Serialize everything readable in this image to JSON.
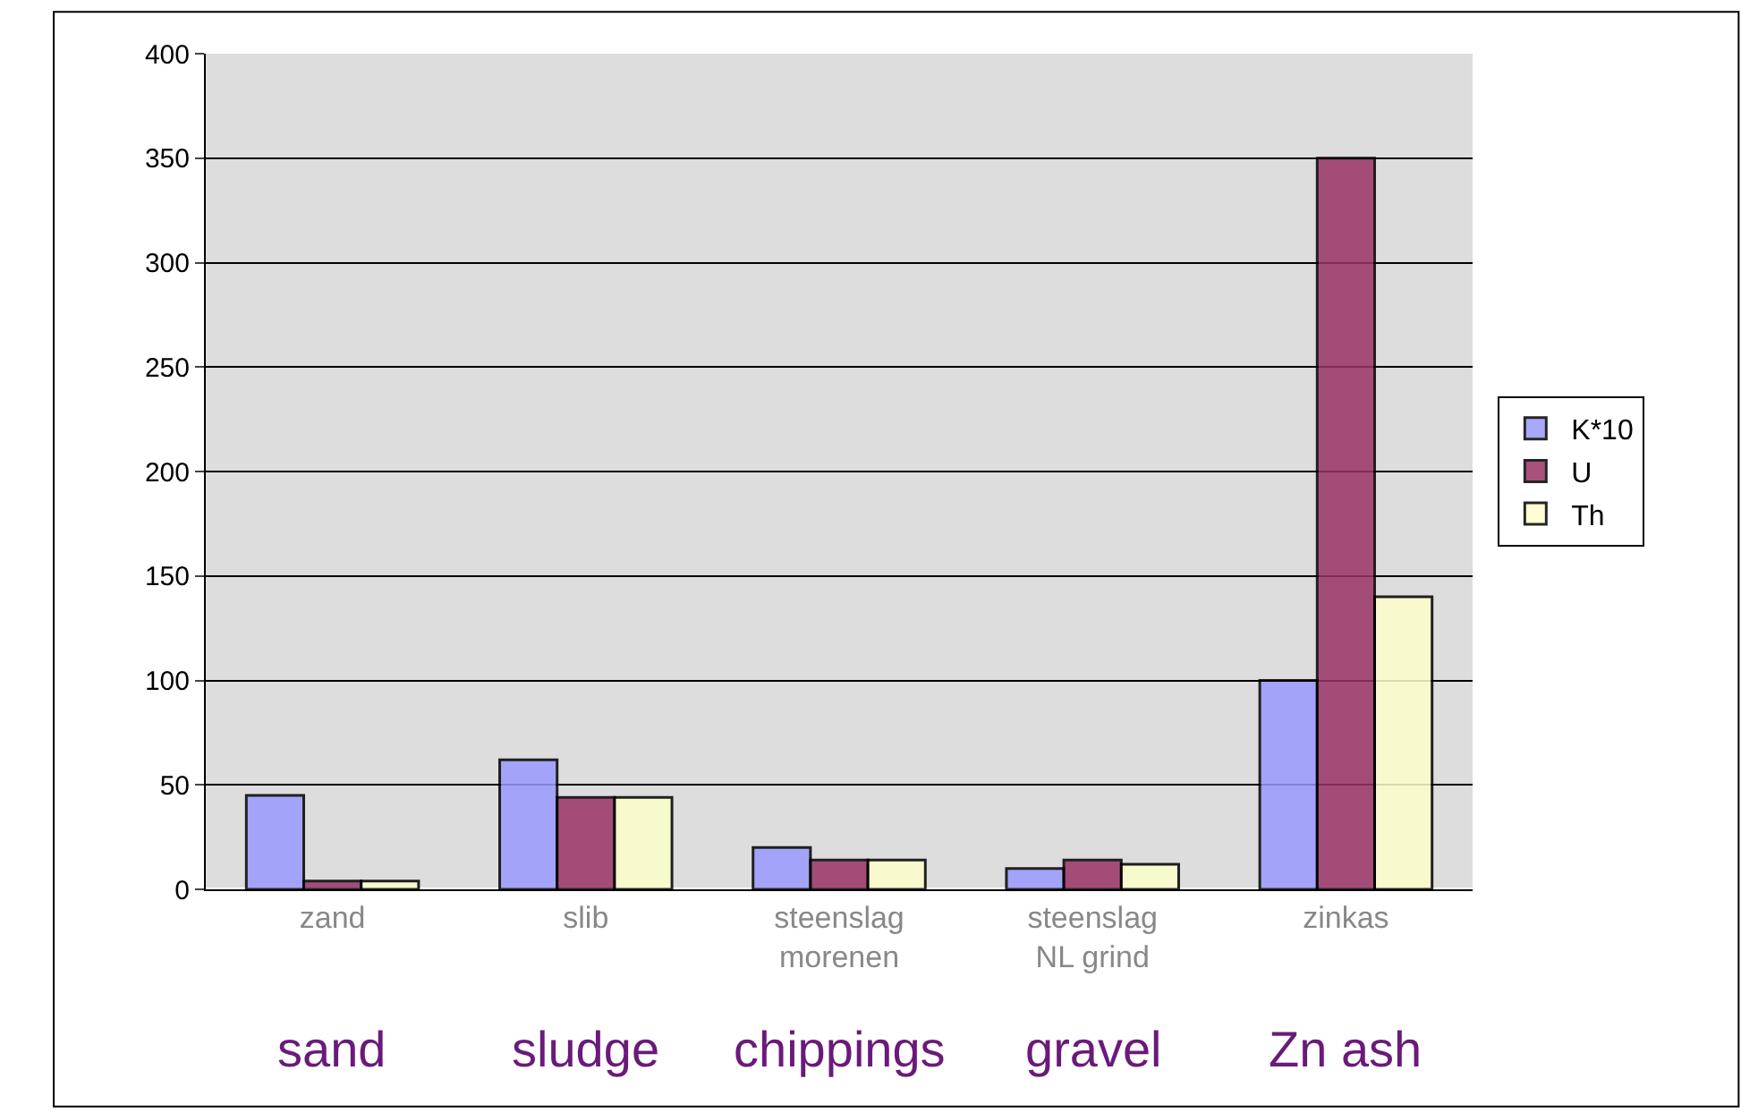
{
  "chart_data": {
    "type": "bar",
    "categories": [
      "zand",
      "slib",
      "steenslag\nmorenen",
      "steenslag\nNL grind",
      "zinkas"
    ],
    "series": [
      {
        "name": "K*10",
        "color": "#9999ff",
        "values": [
          45,
          62,
          20,
          10,
          100
        ]
      },
      {
        "name": "U",
        "color": "#993366",
        "values": [
          4,
          44,
          14,
          14,
          350
        ]
      },
      {
        "name": "Th",
        "color": "#ffffcc",
        "values": [
          4,
          44,
          14,
          12,
          140
        ]
      }
    ],
    "annotations": [
      "sand",
      "sludge",
      "chippings",
      "gravel",
      "Zn ash"
    ],
    "ylim": [
      0,
      400
    ],
    "yticks": [
      0,
      50,
      100,
      150,
      200,
      250,
      300,
      350,
      400
    ],
    "grid": "y",
    "legend": "right"
  }
}
